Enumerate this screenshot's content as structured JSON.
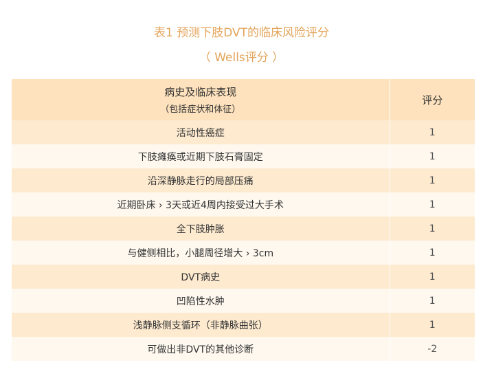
{
  "title": "表1 预测下肢DVT的临床风险评分",
  "subtitle": "（ Wells评分 ）",
  "table": {
    "header": {
      "col1": "病史及临床表现",
      "col1_sub": "（包括症状和体征）",
      "col2": "评分"
    },
    "rows": [
      {
        "item": "活动性癌症",
        "score": "1"
      },
      {
        "item": "下肢瘫痪或近期下肢石膏固定",
        "score": "1"
      },
      {
        "item": "沿深静脉走行的局部压痛",
        "score": "1"
      },
      {
        "item": "近期卧床 › 3天或近4周内接受过大手术",
        "score": "1"
      },
      {
        "item": "全下肢肿胀",
        "score": "1"
      },
      {
        "item": "与健侧相比，小腿周径增大 › 3cm",
        "score": "1"
      },
      {
        "item": "DVT病史",
        "score": "1"
      },
      {
        "item": "凹陷性水肿",
        "score": "1"
      },
      {
        "item": "浅静脉侧支循环（非静脉曲张）",
        "score": "1"
      },
      {
        "item": "可做出非DVT的其他诊断",
        "score": "-2"
      }
    ]
  },
  "colors": {
    "title": "#e3a45a",
    "header_bg": "#fde2bd",
    "row_odd": "#fdeacf",
    "row_even": "#fef8ef"
  }
}
